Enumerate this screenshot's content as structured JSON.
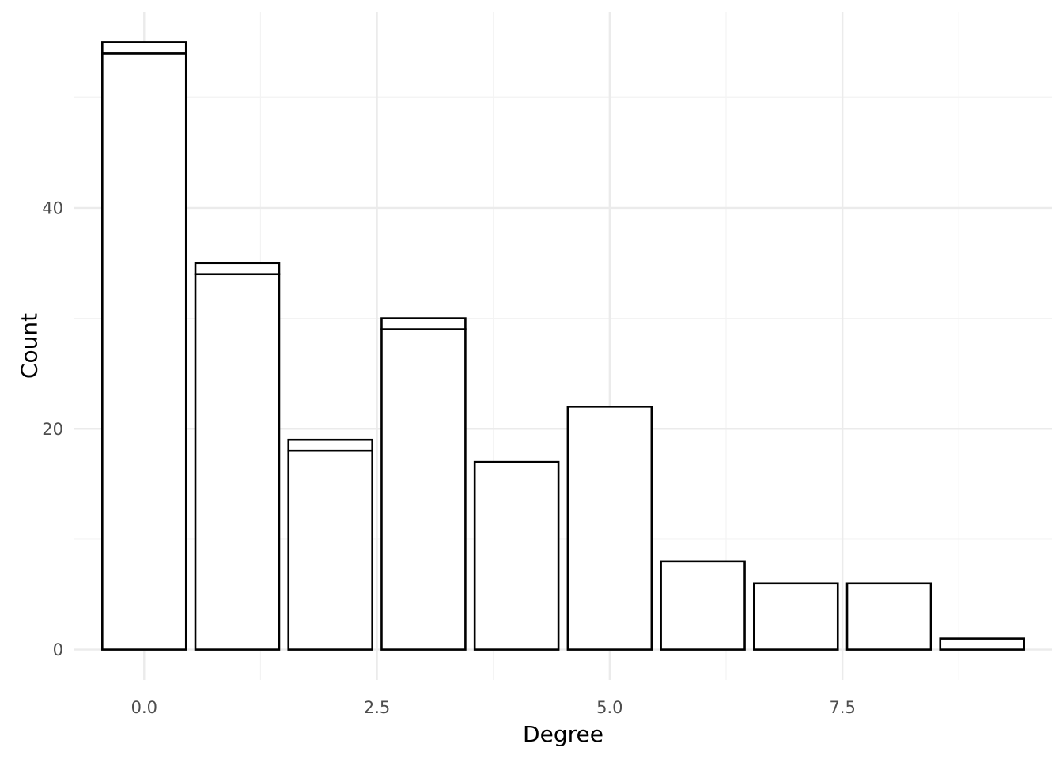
{
  "chart_data": {
    "type": "bar",
    "title": "",
    "xlabel": "Degree",
    "ylabel": "Count",
    "x": [
      0,
      1,
      2,
      3,
      4,
      5,
      6,
      7,
      8,
      9
    ],
    "series": [
      {
        "values": [
          54,
          34,
          18,
          29,
          17,
          22,
          8,
          6,
          6,
          1
        ]
      },
      {
        "values": [
          1,
          1,
          1,
          1,
          0,
          0,
          0,
          0,
          0,
          0
        ]
      }
    ],
    "stacked": true,
    "fill_color": "#ffffff",
    "outline_color": "#000000",
    "xlim": [
      -0.75,
      9.75
    ],
    "ylim": [
      -2.75,
      57.75
    ],
    "x_ticks": [
      0.0,
      2.5,
      5.0,
      7.5
    ],
    "x_tick_labels": [
      "0.0",
      "2.5",
      "5.0",
      "7.5"
    ],
    "y_ticks": [
      0,
      20,
      40
    ],
    "y_tick_labels": [
      "0",
      "20",
      "40"
    ],
    "grid": true,
    "legend": "none"
  }
}
